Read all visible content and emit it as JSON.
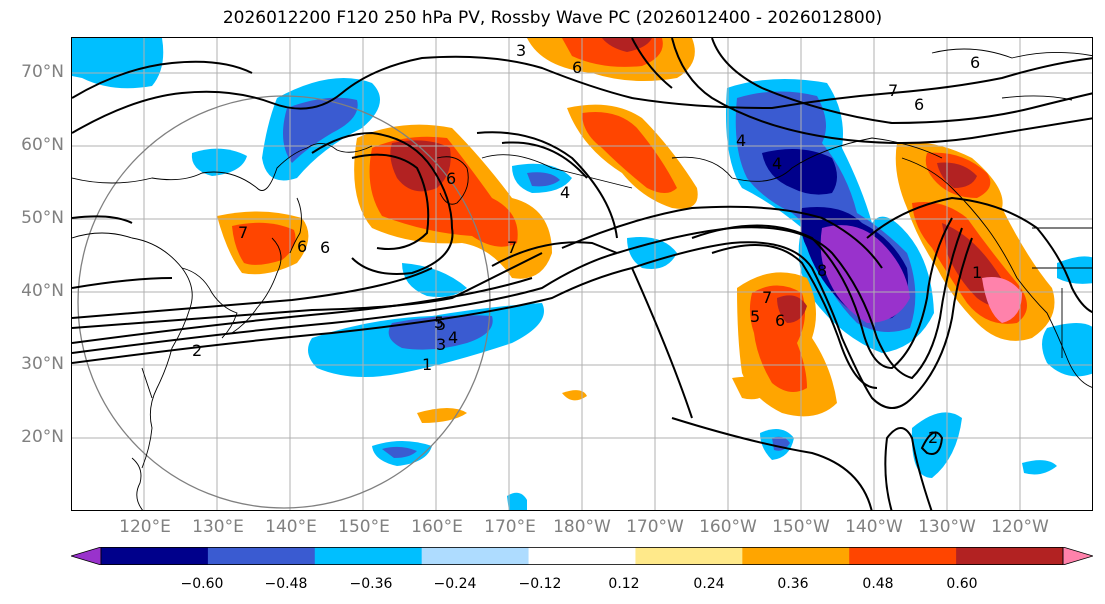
{
  "title": "2026012200 F120 250 hPa PV, Rossby Wave PC (2026012400 - 2026012800)",
  "lat_labels": [
    "70°N",
    "60°N",
    "50°N",
    "40°N",
    "30°N",
    "20°N"
  ],
  "lon_labels": [
    "120°E",
    "130°E",
    "140°E",
    "150°E",
    "160°E",
    "170°E",
    "180°W",
    "170°W",
    "160°W",
    "150°W",
    "140°W",
    "130°W",
    "120°W"
  ],
  "colorbar": {
    "tick_labels": [
      "−0.60",
      "−0.48",
      "−0.36",
      "−0.24",
      "−0.12",
      "0.12",
      "0.24",
      "0.36",
      "0.48",
      "0.60"
    ],
    "colors": [
      "#9932cc",
      "#00008b",
      "#3a5bd1",
      "#00bfff",
      "#aedcff",
      "#ffffff",
      "#ffe98a",
      "#ffa500",
      "#ff4500",
      "#b22222",
      "#ff82ab"
    ]
  },
  "contour_labels": [
    "3",
    "5",
    "6",
    "7",
    "6",
    "4",
    "6",
    "7",
    "6",
    "4",
    "6",
    "7",
    "2",
    "5",
    "4",
    "3",
    "1",
    "4",
    "5",
    "7",
    "6",
    "8",
    "1",
    "2",
    "6"
  ],
  "legend": {
    "shading": "Rossby Wave PC",
    "contours": "250 hPa PV"
  }
}
